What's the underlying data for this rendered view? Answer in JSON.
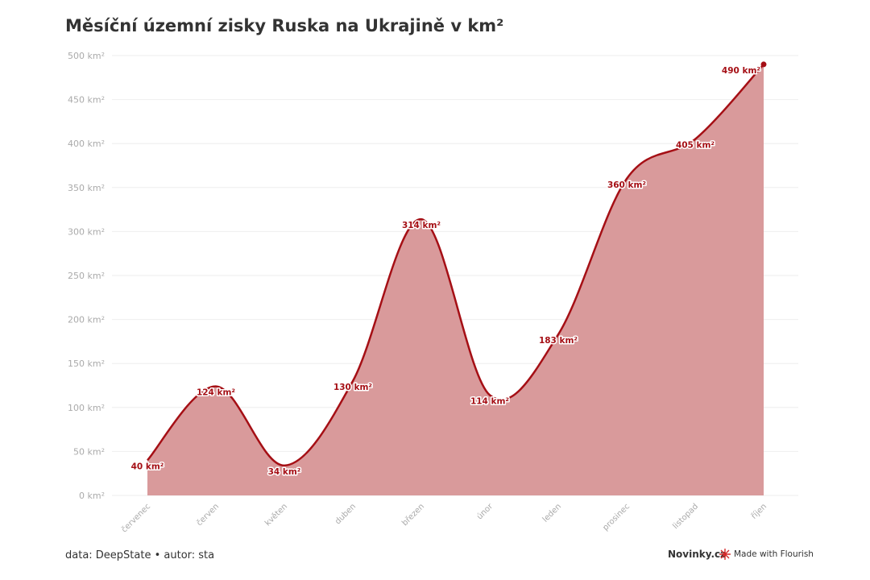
{
  "page": {
    "title": "Měsíční územní zisky Ruska na Ukrajině v km²",
    "source": "data: DeepState • autor: sta",
    "brand": "Novinky.cz",
    "made_with": "Made with Flourish"
  },
  "colors": {
    "line": "#a50f15",
    "area": "#d99a9b",
    "grid": "#eeeeee",
    "tick_text": "#aaaaaa",
    "label_text": "#a50f15"
  },
  "icons": {
    "flourish": "flourish-logo-icon"
  },
  "chart_data": {
    "type": "area",
    "title": "Měsíční územní zisky Ruska na Ukrajině v km²",
    "xlabel": "",
    "ylabel": "",
    "categories": [
      "červenec",
      "červen",
      "květen",
      "duben",
      "březen",
      "únor",
      "leden",
      "prosinec",
      "listopad",
      "říjen"
    ],
    "series": [
      {
        "values": [
          40,
          124,
          34,
          130,
          314,
          114,
          183,
          360,
          405,
          490
        ],
        "labels": [
          "40 km²",
          "124 km²",
          "34 km²",
          "130 km²",
          "314 km²",
          "114 km²",
          "183 km²",
          "360 km²",
          "405 km²",
          "490 km²"
        ]
      }
    ],
    "ylim": [
      0,
      500
    ],
    "yticks": [
      0,
      50,
      100,
      150,
      200,
      250,
      300,
      350,
      400,
      450,
      500
    ],
    "ytick_labels": [
      "0 km²",
      "50 km²",
      "100 km²",
      "150 km²",
      "200 km²",
      "250 km²",
      "300 km²",
      "350 km²",
      "400 km²",
      "450 km²",
      "500 km²"
    ],
    "grid": true,
    "curve": "smooth",
    "legend": "none"
  }
}
